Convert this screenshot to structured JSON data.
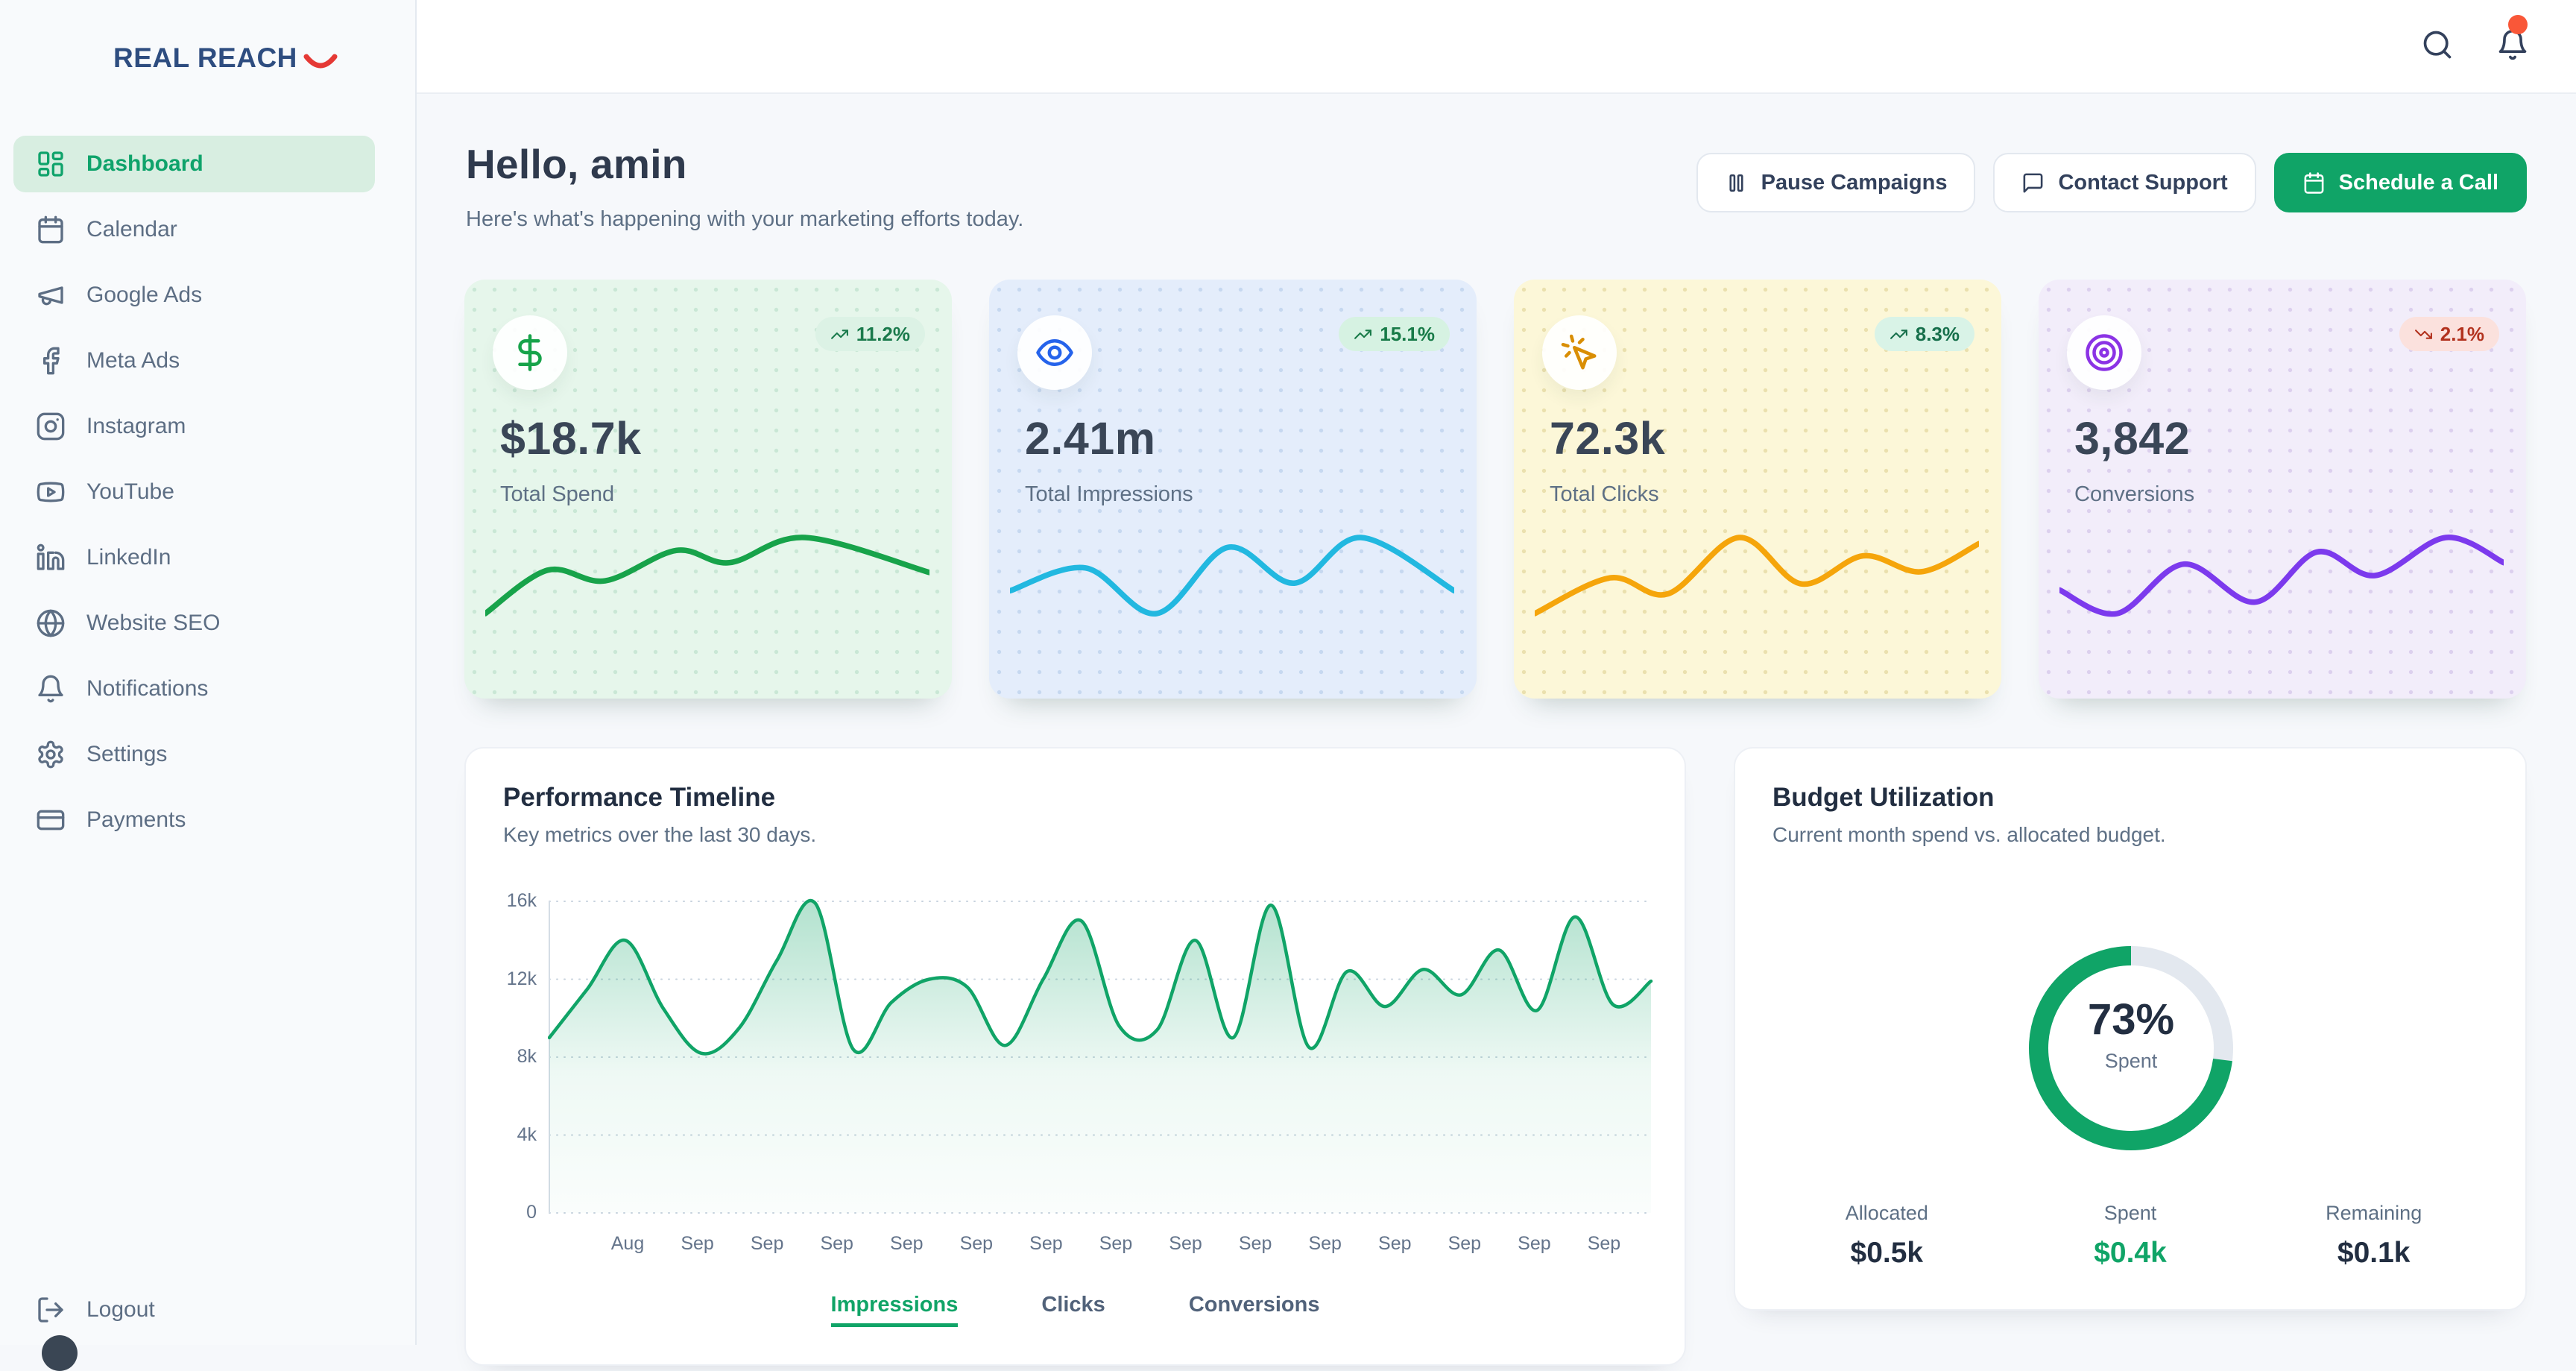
{
  "brand": {
    "name": "REAL REACH",
    "smile_icon": "smile-arc",
    "text_color": "#2E4D80",
    "accent_color": "#E53935"
  },
  "topbar": {
    "search_icon": "search",
    "bell_icon": "bell",
    "bell_has_unread_dot": true,
    "dot_color": "#F95738"
  },
  "sidebar": {
    "items": [
      {
        "label": "Dashboard",
        "icon": "dashboard",
        "active": true
      },
      {
        "label": "Calendar",
        "icon": "calendar",
        "active": false
      },
      {
        "label": "Google Ads",
        "icon": "megaphone",
        "active": false
      },
      {
        "label": "Meta Ads",
        "icon": "facebook",
        "active": false
      },
      {
        "label": "Instagram",
        "icon": "instagram",
        "active": false
      },
      {
        "label": "YouTube",
        "icon": "youtube",
        "active": false
      },
      {
        "label": "LinkedIn",
        "icon": "linkedin",
        "active": false
      },
      {
        "label": "Website SEO",
        "icon": "globe",
        "active": false
      },
      {
        "label": "Notifications",
        "icon": "bell",
        "active": false
      },
      {
        "label": "Settings",
        "icon": "gear",
        "active": false
      },
      {
        "label": "Payments",
        "icon": "credit-card",
        "active": false
      }
    ],
    "logout": {
      "label": "Logout",
      "icon": "logout"
    }
  },
  "header": {
    "greeting": "Hello, amin",
    "subtitle": "Here's what's happening with your marketing efforts today.",
    "actions": [
      {
        "label": "Pause Campaigns",
        "icon": "pause",
        "variant": "outline"
      },
      {
        "label": "Contact Support",
        "icon": "chat",
        "variant": "outline"
      },
      {
        "label": "Schedule a Call",
        "icon": "calendar",
        "variant": "primary"
      }
    ],
    "primary_color": "#10A467"
  },
  "stat_cards": [
    {
      "label": "Total Spend",
      "value": "$18.7k",
      "icon": "dollar",
      "badge": {
        "text": "11.2%",
        "direction": "up",
        "bg": "#DCF2E5",
        "color": "#1A7A4C"
      },
      "colors": {
        "bg": "#E6F6EB",
        "dot": "#C9E7D5",
        "icon": "#17A34A"
      },
      "sparkline": {
        "color": "#17A34A",
        "points": [
          [
            0,
            100
          ],
          [
            14,
            43
          ],
          [
            27,
            57
          ],
          [
            43,
            17
          ],
          [
            55,
            33
          ],
          [
            72,
            0
          ],
          [
            100,
            46
          ]
        ]
      }
    },
    {
      "label": "Total Impressions",
      "value": "2.41m",
      "icon": "eye",
      "badge": {
        "text": "15.1%",
        "direction": "up",
        "bg": "#D6F2E2",
        "color": "#177A47"
      },
      "colors": {
        "bg": "#E4EDFB",
        "dot": "#C6D8F0",
        "icon": "#2563EB"
      },
      "sparkline": {
        "color": "#22B8E0",
        "points": [
          [
            0,
            70
          ],
          [
            17,
            40
          ],
          [
            33,
            100
          ],
          [
            49,
            13
          ],
          [
            64,
            60
          ],
          [
            79,
            0
          ],
          [
            100,
            70
          ]
        ]
      }
    },
    {
      "label": "Total Clicks",
      "value": "72.3k",
      "icon": "cursor-click",
      "badge": {
        "text": "8.3%",
        "direction": "up",
        "bg": "#D9F3E7",
        "color": "#166F4B"
      },
      "colors": {
        "bg": "#FCF7D8",
        "dot": "#EAE0AE",
        "icon": "#D98E04"
      },
      "sparkline": {
        "color": "#F5A50B",
        "points": [
          [
            0,
            100
          ],
          [
            17,
            53
          ],
          [
            30,
            74
          ],
          [
            46,
            0
          ],
          [
            60,
            61
          ],
          [
            74,
            24
          ],
          [
            87,
            45
          ],
          [
            100,
            8
          ]
        ]
      }
    },
    {
      "label": "Conversions",
      "value": "3,842",
      "icon": "target",
      "badge": {
        "text": "2.1%",
        "direction": "down",
        "bg": "#FBE1DD",
        "color": "#B2321E"
      },
      "colors": {
        "bg": "#F2EDFA",
        "dot": "#DCD0EE",
        "icon": "#8B33E5"
      },
      "sparkline": {
        "color": "#7C3AED",
        "points": [
          [
            0,
            69
          ],
          [
            13,
            100
          ],
          [
            28,
            35
          ],
          [
            44,
            85
          ],
          [
            58,
            19
          ],
          [
            71,
            50
          ],
          [
            87,
            0
          ],
          [
            100,
            33
          ]
        ]
      }
    }
  ],
  "performance": {
    "title": "Performance Timeline",
    "subtitle": "Key metrics over the last 30 days.",
    "line_color": "#10A467",
    "y_tick_labels_top_down": [
      "16k",
      "12k",
      "8k",
      "4k",
      "0"
    ],
    "x_tick_labels": [
      "Aug",
      "Sep",
      "Sep",
      "Sep",
      "Sep",
      "Sep",
      "Sep",
      "Sep",
      "Sep",
      "Sep",
      "Sep",
      "Sep",
      "Sep",
      "Sep",
      "Sep"
    ],
    "legend": [
      {
        "label": "Impressions",
        "active": true
      },
      {
        "label": "Clicks",
        "active": false
      },
      {
        "label": "Conversions",
        "active": false
      }
    ]
  },
  "budget": {
    "title": "Budget Utilization",
    "subtitle": "Current month spend vs. allocated budget.",
    "percent": 73,
    "percent_label": "73%",
    "center_caption": "Spent",
    "ring_color": "#10A467",
    "track_color": "#E3E8EF",
    "stats": [
      {
        "label": "Allocated",
        "value": "$0.5k",
        "emphasis": "dark"
      },
      {
        "label": "Spent",
        "value": "$0.4k",
        "emphasis": "green"
      },
      {
        "label": "Remaining",
        "value": "$0.1k",
        "emphasis": "dark"
      }
    ]
  },
  "chart_data": [
    {
      "id": "performance-timeline",
      "type": "area",
      "title": "Performance Timeline",
      "xlabel": "",
      "ylabel": "",
      "ylim": [
        0,
        16000
      ],
      "grid": "dotted-horizontal",
      "legend_position": "bottom",
      "x_tick_labels": [
        "Aug",
        "Sep",
        "Sep",
        "Sep",
        "Sep",
        "Sep",
        "Sep",
        "Sep",
        "Sep",
        "Sep",
        "Sep",
        "Sep",
        "Sep",
        "Sep",
        "Sep"
      ],
      "y_tick_labels": [
        "0",
        "4k",
        "8k",
        "12k",
        "16k"
      ],
      "series": [
        {
          "name": "Impressions",
          "color": "#10A467",
          "unit": "thousands",
          "values": [
            9.0,
            11.5,
            14.0,
            10.5,
            8.2,
            9.5,
            13.0,
            15.9,
            8.4,
            10.8,
            12.0,
            11.6,
            8.6,
            12.0,
            15.0,
            9.6,
            9.4,
            14.0,
            9.0,
            15.8,
            8.5,
            12.4,
            10.6,
            12.5,
            11.2,
            13.5,
            10.4,
            15.2,
            10.7,
            11.9
          ]
        }
      ]
    },
    {
      "id": "budget-utilization",
      "type": "donut",
      "title": "Budget Utilization",
      "center_text": "73%",
      "center_caption": "Spent",
      "slices": [
        {
          "name": "Spent",
          "percent": 73,
          "color": "#10A467"
        },
        {
          "name": "Remaining",
          "percent": 27,
          "color": "#E3E8EF"
        }
      ]
    }
  ]
}
